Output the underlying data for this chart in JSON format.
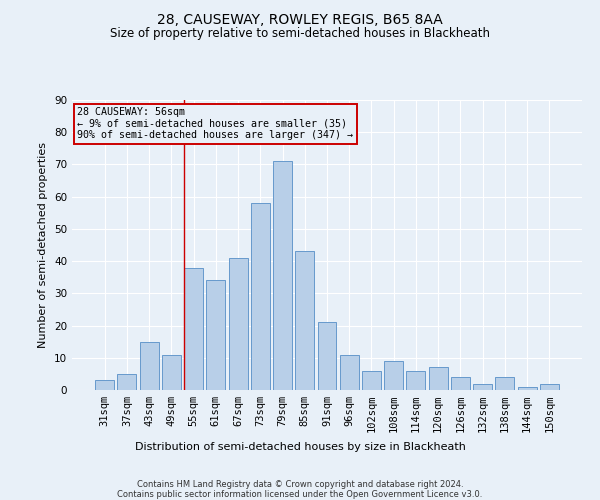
{
  "title": "28, CAUSEWAY, ROWLEY REGIS, B65 8AA",
  "subtitle": "Size of property relative to semi-detached houses in Blackheath",
  "xlabel": "Distribution of semi-detached houses by size in Blackheath",
  "ylabel": "Number of semi-detached properties",
  "footer1": "Contains HM Land Registry data © Crown copyright and database right 2024.",
  "footer2": "Contains public sector information licensed under the Open Government Licence v3.0.",
  "bar_labels": [
    "31sqm",
    "37sqm",
    "43sqm",
    "49sqm",
    "55sqm",
    "61sqm",
    "67sqm",
    "73sqm",
    "79sqm",
    "85sqm",
    "91sqm",
    "96sqm",
    "102sqm",
    "108sqm",
    "114sqm",
    "120sqm",
    "126sqm",
    "132sqm",
    "138sqm",
    "144sqm",
    "150sqm"
  ],
  "bar_values": [
    3,
    5,
    15,
    11,
    38,
    34,
    41,
    58,
    71,
    43,
    21,
    11,
    6,
    9,
    6,
    7,
    4,
    2,
    4,
    1,
    2
  ],
  "bar_color": "#b8cfe8",
  "bar_edge_color": "#6699cc",
  "property_label": "28 CAUSEWAY: 56sqm",
  "pct_smaller": 9,
  "n_smaller": 35,
  "pct_larger": 90,
  "n_larger": 347,
  "vline_bin_index": 4,
  "annotation_box_color": "#cc0000",
  "ylim": [
    0,
    90
  ],
  "yticks": [
    0,
    10,
    20,
    30,
    40,
    50,
    60,
    70,
    80,
    90
  ],
  "bg_color": "#e8f0f8",
  "grid_color": "#ffffff",
  "title_fontsize": 10,
  "subtitle_fontsize": 8.5,
  "xlabel_fontsize": 8,
  "ylabel_fontsize": 8,
  "tick_fontsize": 7.5,
  "footer_fontsize": 6
}
